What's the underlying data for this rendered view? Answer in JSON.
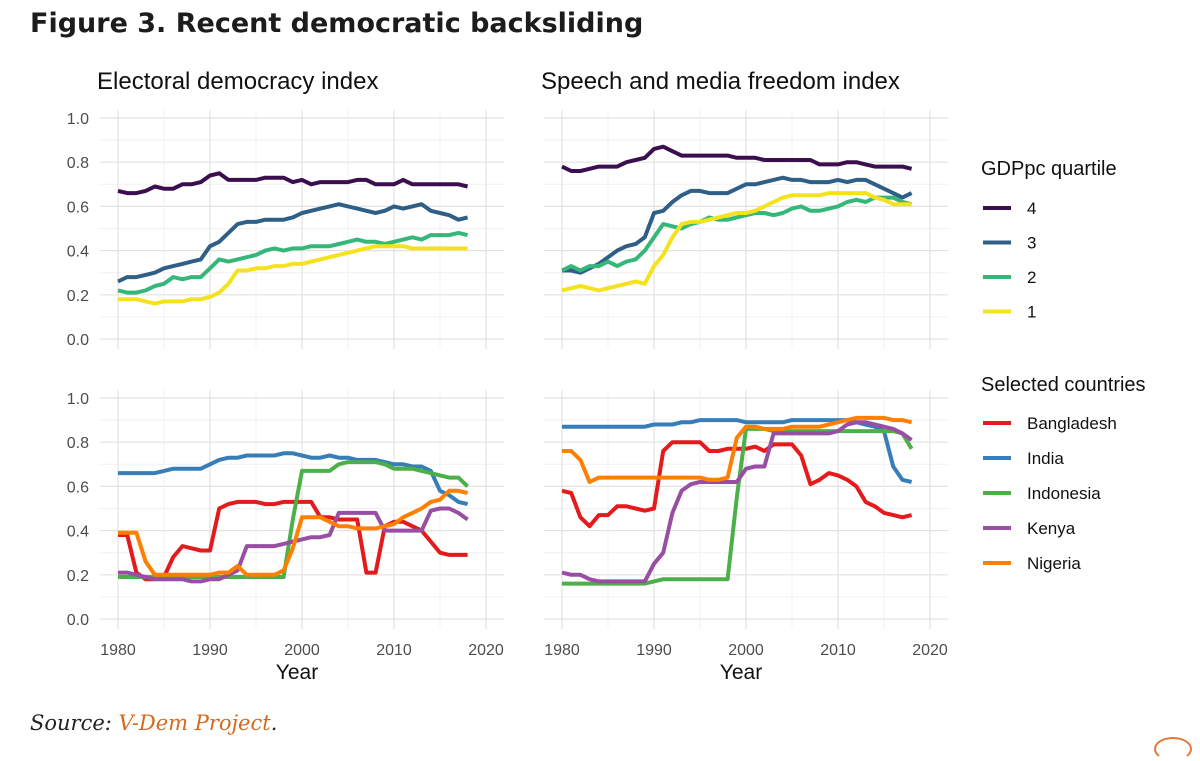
{
  "figure": {
    "title": "Figure 3. Recent democratic backsliding",
    "source_label": "Source:",
    "source_link": "V-Dem Project",
    "source_end": "."
  },
  "colors": {
    "q4": "#3b0f4f",
    "q3": "#2f5f86",
    "q2": "#35b779",
    "q1": "#f5e21f",
    "Bangladesh": "#e41a1c",
    "India": "#377eb8",
    "Indonesia": "#4daf4a",
    "Kenya": "#984ea3",
    "Nigeria": "#ff7f00"
  },
  "legends": {
    "quartile_title": "GDPpc quartile",
    "quartile_items": [
      {
        "label": "4",
        "key": "q4"
      },
      {
        "label": "3",
        "key": "q3"
      },
      {
        "label": "2",
        "key": "q2"
      },
      {
        "label": "1",
        "key": "q1"
      }
    ],
    "country_title": "Selected countries",
    "country_items": [
      {
        "label": "Bangladesh",
        "key": "Bangladesh"
      },
      {
        "label": "India",
        "key": "India"
      },
      {
        "label": "Indonesia",
        "key": "Indonesia"
      },
      {
        "label": "Kenya",
        "key": "Kenya"
      },
      {
        "label": "Nigeria",
        "key": "Nigeria"
      }
    ]
  },
  "chart_data": [
    {
      "type": "line",
      "panel": "top-left",
      "title": "Electoral democracy index",
      "xlabel": "",
      "ylabel": "",
      "xlim": [
        1980,
        2020
      ],
      "ylim": [
        0,
        1
      ],
      "xticks": [
        1980,
        1990,
        2000,
        2010,
        2020
      ],
      "yticks": [
        "0.0",
        "0.2",
        "0.4",
        "0.6",
        "0.8",
        "1.0"
      ],
      "x": [
        1980,
        1981,
        1982,
        1983,
        1984,
        1985,
        1986,
        1987,
        1988,
        1989,
        1990,
        1991,
        1992,
        1993,
        1994,
        1995,
        1996,
        1997,
        1998,
        1999,
        2000,
        2001,
        2002,
        2003,
        2004,
        2005,
        2006,
        2007,
        2008,
        2009,
        2010,
        2011,
        2012,
        2013,
        2014,
        2015,
        2016,
        2017,
        2018
      ],
      "series": [
        {
          "name": "4",
          "key": "q4",
          "values": [
            0.67,
            0.66,
            0.66,
            0.67,
            0.69,
            0.68,
            0.68,
            0.7,
            0.7,
            0.71,
            0.74,
            0.75,
            0.72,
            0.72,
            0.72,
            0.72,
            0.73,
            0.73,
            0.73,
            0.71,
            0.72,
            0.7,
            0.71,
            0.71,
            0.71,
            0.71,
            0.72,
            0.72,
            0.7,
            0.7,
            0.7,
            0.72,
            0.7,
            0.7,
            0.7,
            0.7,
            0.7,
            0.7,
            0.69
          ]
        },
        {
          "name": "3",
          "key": "q3",
          "values": [
            0.26,
            0.28,
            0.28,
            0.29,
            0.3,
            0.32,
            0.33,
            0.34,
            0.35,
            0.36,
            0.42,
            0.44,
            0.48,
            0.52,
            0.53,
            0.53,
            0.54,
            0.54,
            0.54,
            0.55,
            0.57,
            0.58,
            0.59,
            0.6,
            0.61,
            0.6,
            0.59,
            0.58,
            0.57,
            0.58,
            0.6,
            0.59,
            0.6,
            0.61,
            0.58,
            0.57,
            0.56,
            0.54,
            0.55
          ]
        },
        {
          "name": "2",
          "key": "q2",
          "values": [
            0.22,
            0.21,
            0.21,
            0.22,
            0.24,
            0.25,
            0.28,
            0.27,
            0.28,
            0.28,
            0.32,
            0.36,
            0.35,
            0.36,
            0.37,
            0.38,
            0.4,
            0.41,
            0.4,
            0.41,
            0.41,
            0.42,
            0.42,
            0.42,
            0.43,
            0.44,
            0.45,
            0.44,
            0.44,
            0.43,
            0.44,
            0.45,
            0.46,
            0.45,
            0.47,
            0.47,
            0.47,
            0.48,
            0.47
          ]
        },
        {
          "name": "1",
          "key": "q1",
          "values": [
            0.18,
            0.18,
            0.18,
            0.17,
            0.16,
            0.17,
            0.17,
            0.17,
            0.18,
            0.18,
            0.19,
            0.21,
            0.25,
            0.31,
            0.31,
            0.32,
            0.32,
            0.33,
            0.33,
            0.34,
            0.34,
            0.35,
            0.36,
            0.37,
            0.38,
            0.39,
            0.4,
            0.41,
            0.42,
            0.42,
            0.42,
            0.42,
            0.41,
            0.41,
            0.41,
            0.41,
            0.41,
            0.41,
            0.41
          ]
        }
      ]
    },
    {
      "type": "line",
      "panel": "top-right",
      "title": "Speech and media freedom index",
      "xlabel": "",
      "ylabel": "",
      "xlim": [
        1980,
        2020
      ],
      "ylim": [
        0,
        1
      ],
      "xticks": [
        1980,
        1990,
        2000,
        2010,
        2020
      ],
      "yticks": [
        "0.0",
        "0.2",
        "0.4",
        "0.6",
        "0.8",
        "1.0"
      ],
      "x": [
        1980,
        1981,
        1982,
        1983,
        1984,
        1985,
        1986,
        1987,
        1988,
        1989,
        1990,
        1991,
        1992,
        1993,
        1994,
        1995,
        1996,
        1997,
        1998,
        1999,
        2000,
        2001,
        2002,
        2003,
        2004,
        2005,
        2006,
        2007,
        2008,
        2009,
        2010,
        2011,
        2012,
        2013,
        2014,
        2015,
        2016,
        2017,
        2018
      ],
      "series": [
        {
          "name": "4",
          "key": "q4",
          "values": [
            0.78,
            0.76,
            0.76,
            0.77,
            0.78,
            0.78,
            0.78,
            0.8,
            0.81,
            0.82,
            0.86,
            0.87,
            0.85,
            0.83,
            0.83,
            0.83,
            0.83,
            0.83,
            0.83,
            0.82,
            0.82,
            0.82,
            0.81,
            0.81,
            0.81,
            0.81,
            0.81,
            0.81,
            0.79,
            0.79,
            0.79,
            0.8,
            0.8,
            0.79,
            0.78,
            0.78,
            0.78,
            0.78,
            0.77
          ]
        },
        {
          "name": "3",
          "key": "q3",
          "values": [
            0.31,
            0.31,
            0.3,
            0.32,
            0.34,
            0.37,
            0.4,
            0.42,
            0.43,
            0.46,
            0.57,
            0.58,
            0.62,
            0.65,
            0.67,
            0.67,
            0.66,
            0.66,
            0.66,
            0.68,
            0.7,
            0.7,
            0.71,
            0.72,
            0.73,
            0.72,
            0.72,
            0.71,
            0.71,
            0.71,
            0.72,
            0.71,
            0.72,
            0.72,
            0.7,
            0.68,
            0.66,
            0.64,
            0.66
          ]
        },
        {
          "name": "2",
          "key": "q2",
          "values": [
            0.31,
            0.33,
            0.31,
            0.33,
            0.33,
            0.35,
            0.33,
            0.35,
            0.36,
            0.4,
            0.46,
            0.52,
            0.51,
            0.5,
            0.52,
            0.53,
            0.55,
            0.54,
            0.54,
            0.55,
            0.56,
            0.57,
            0.57,
            0.56,
            0.57,
            0.59,
            0.6,
            0.58,
            0.58,
            0.59,
            0.6,
            0.62,
            0.63,
            0.62,
            0.64,
            0.64,
            0.64,
            0.62,
            0.61
          ]
        },
        {
          "name": "1",
          "key": "q1",
          "values": [
            0.22,
            0.23,
            0.24,
            0.23,
            0.22,
            0.23,
            0.24,
            0.25,
            0.26,
            0.25,
            0.33,
            0.38,
            0.46,
            0.52,
            0.53,
            0.53,
            0.54,
            0.55,
            0.56,
            0.57,
            0.57,
            0.58,
            0.6,
            0.62,
            0.64,
            0.65,
            0.65,
            0.65,
            0.65,
            0.66,
            0.66,
            0.66,
            0.66,
            0.66,
            0.64,
            0.63,
            0.61,
            0.61,
            0.61
          ]
        }
      ]
    },
    {
      "type": "line",
      "panel": "bottom-left",
      "title": "",
      "xlabel": "Year",
      "ylabel": "",
      "xlim": [
        1980,
        2020
      ],
      "ylim": [
        0,
        1
      ],
      "xticks": [
        1980,
        1990,
        2000,
        2010,
        2020
      ],
      "yticks": [
        "0.0",
        "0.2",
        "0.4",
        "0.6",
        "0.8",
        "1.0"
      ],
      "x": [
        1980,
        1981,
        1982,
        1983,
        1984,
        1985,
        1986,
        1987,
        1988,
        1989,
        1990,
        1991,
        1992,
        1993,
        1994,
        1995,
        1996,
        1997,
        1998,
        1999,
        2000,
        2001,
        2002,
        2003,
        2004,
        2005,
        2006,
        2007,
        2008,
        2009,
        2010,
        2011,
        2012,
        2013,
        2014,
        2015,
        2016,
        2017,
        2018
      ],
      "series": [
        {
          "name": "Bangladesh",
          "key": "Bangladesh",
          "values": [
            0.38,
            0.38,
            0.21,
            0.18,
            0.18,
            0.19,
            0.28,
            0.33,
            0.32,
            0.31,
            0.31,
            0.5,
            0.52,
            0.53,
            0.53,
            0.53,
            0.52,
            0.52,
            0.53,
            0.53,
            0.53,
            0.53,
            0.46,
            0.46,
            0.45,
            0.45,
            0.45,
            0.21,
            0.21,
            0.42,
            0.44,
            0.44,
            0.42,
            0.4,
            0.35,
            0.3,
            0.29,
            0.29,
            0.29
          ]
        },
        {
          "name": "India",
          "key": "India",
          "values": [
            0.66,
            0.66,
            0.66,
            0.66,
            0.66,
            0.67,
            0.68,
            0.68,
            0.68,
            0.68,
            0.7,
            0.72,
            0.73,
            0.73,
            0.74,
            0.74,
            0.74,
            0.74,
            0.75,
            0.75,
            0.74,
            0.73,
            0.73,
            0.74,
            0.73,
            0.73,
            0.72,
            0.72,
            0.72,
            0.71,
            0.7,
            0.7,
            0.69,
            0.69,
            0.67,
            0.58,
            0.56,
            0.53,
            0.52
          ]
        },
        {
          "name": "Indonesia",
          "key": "Indonesia",
          "values": [
            0.19,
            0.19,
            0.19,
            0.19,
            0.19,
            0.19,
            0.19,
            0.19,
            0.19,
            0.19,
            0.19,
            0.19,
            0.19,
            0.19,
            0.19,
            0.19,
            0.19,
            0.19,
            0.19,
            0.45,
            0.67,
            0.67,
            0.67,
            0.67,
            0.7,
            0.71,
            0.71,
            0.71,
            0.71,
            0.7,
            0.68,
            0.68,
            0.68,
            0.67,
            0.66,
            0.65,
            0.64,
            0.64,
            0.6
          ]
        },
        {
          "name": "Kenya",
          "key": "Kenya",
          "values": [
            0.21,
            0.21,
            0.2,
            0.19,
            0.18,
            0.18,
            0.18,
            0.18,
            0.17,
            0.17,
            0.18,
            0.18,
            0.2,
            0.22,
            0.33,
            0.33,
            0.33,
            0.33,
            0.34,
            0.35,
            0.36,
            0.37,
            0.37,
            0.38,
            0.48,
            0.48,
            0.48,
            0.48,
            0.48,
            0.4,
            0.4,
            0.4,
            0.4,
            0.4,
            0.49,
            0.5,
            0.5,
            0.48,
            0.45
          ]
        },
        {
          "name": "Nigeria",
          "key": "Nigeria",
          "values": [
            0.39,
            0.39,
            0.39,
            0.26,
            0.2,
            0.2,
            0.2,
            0.2,
            0.2,
            0.2,
            0.2,
            0.21,
            0.21,
            0.24,
            0.2,
            0.2,
            0.2,
            0.2,
            0.22,
            0.32,
            0.46,
            0.46,
            0.46,
            0.44,
            0.42,
            0.42,
            0.41,
            0.41,
            0.41,
            0.42,
            0.43,
            0.46,
            0.48,
            0.5,
            0.53,
            0.54,
            0.58,
            0.58,
            0.57
          ]
        }
      ]
    },
    {
      "type": "line",
      "panel": "bottom-right",
      "title": "",
      "xlabel": "Year",
      "ylabel": "",
      "xlim": [
        1980,
        2020
      ],
      "ylim": [
        0,
        1
      ],
      "xticks": [
        1980,
        1990,
        2000,
        2010,
        2020
      ],
      "yticks": [
        "0.0",
        "0.2",
        "0.4",
        "0.6",
        "0.8",
        "1.0"
      ],
      "x": [
        1980,
        1981,
        1982,
        1983,
        1984,
        1985,
        1986,
        1987,
        1988,
        1989,
        1990,
        1991,
        1992,
        1993,
        1994,
        1995,
        1996,
        1997,
        1998,
        1999,
        2000,
        2001,
        2002,
        2003,
        2004,
        2005,
        2006,
        2007,
        2008,
        2009,
        2010,
        2011,
        2012,
        2013,
        2014,
        2015,
        2016,
        2017,
        2018
      ],
      "series": [
        {
          "name": "Bangladesh",
          "key": "Bangladesh",
          "values": [
            0.58,
            0.57,
            0.46,
            0.42,
            0.47,
            0.47,
            0.51,
            0.51,
            0.5,
            0.49,
            0.5,
            0.76,
            0.8,
            0.8,
            0.8,
            0.8,
            0.76,
            0.76,
            0.77,
            0.77,
            0.77,
            0.78,
            0.76,
            0.79,
            0.79,
            0.79,
            0.74,
            0.61,
            0.63,
            0.66,
            0.65,
            0.63,
            0.6,
            0.53,
            0.51,
            0.48,
            0.47,
            0.46,
            0.47
          ]
        },
        {
          "name": "India",
          "key": "India",
          "values": [
            0.87,
            0.87,
            0.87,
            0.87,
            0.87,
            0.87,
            0.87,
            0.87,
            0.87,
            0.87,
            0.88,
            0.88,
            0.88,
            0.89,
            0.89,
            0.9,
            0.9,
            0.9,
            0.9,
            0.9,
            0.89,
            0.89,
            0.89,
            0.89,
            0.89,
            0.9,
            0.9,
            0.9,
            0.9,
            0.9,
            0.9,
            0.9,
            0.89,
            0.88,
            0.87,
            0.85,
            0.69,
            0.63,
            0.62
          ]
        },
        {
          "name": "Indonesia",
          "key": "Indonesia",
          "values": [
            0.16,
            0.16,
            0.16,
            0.16,
            0.16,
            0.16,
            0.16,
            0.16,
            0.16,
            0.16,
            0.17,
            0.18,
            0.18,
            0.18,
            0.18,
            0.18,
            0.18,
            0.18,
            0.18,
            0.55,
            0.86,
            0.86,
            0.86,
            0.85,
            0.85,
            0.85,
            0.85,
            0.85,
            0.85,
            0.85,
            0.85,
            0.85,
            0.85,
            0.85,
            0.85,
            0.85,
            0.85,
            0.84,
            0.77
          ]
        },
        {
          "name": "Kenya",
          "key": "Kenya",
          "values": [
            0.21,
            0.2,
            0.2,
            0.18,
            0.17,
            0.17,
            0.17,
            0.17,
            0.17,
            0.17,
            0.25,
            0.3,
            0.48,
            0.58,
            0.61,
            0.62,
            0.62,
            0.62,
            0.62,
            0.62,
            0.68,
            0.69,
            0.69,
            0.84,
            0.84,
            0.84,
            0.84,
            0.84,
            0.84,
            0.84,
            0.85,
            0.88,
            0.89,
            0.89,
            0.88,
            0.87,
            0.86,
            0.84,
            0.81
          ]
        },
        {
          "name": "Nigeria",
          "key": "Nigeria",
          "values": [
            0.76,
            0.76,
            0.72,
            0.62,
            0.64,
            0.64,
            0.64,
            0.64,
            0.64,
            0.64,
            0.64,
            0.64,
            0.64,
            0.64,
            0.64,
            0.64,
            0.63,
            0.63,
            0.64,
            0.82,
            0.87,
            0.87,
            0.86,
            0.86,
            0.86,
            0.87,
            0.87,
            0.87,
            0.87,
            0.88,
            0.89,
            0.9,
            0.91,
            0.91,
            0.91,
            0.91,
            0.9,
            0.9,
            0.89
          ]
        }
      ]
    }
  ]
}
